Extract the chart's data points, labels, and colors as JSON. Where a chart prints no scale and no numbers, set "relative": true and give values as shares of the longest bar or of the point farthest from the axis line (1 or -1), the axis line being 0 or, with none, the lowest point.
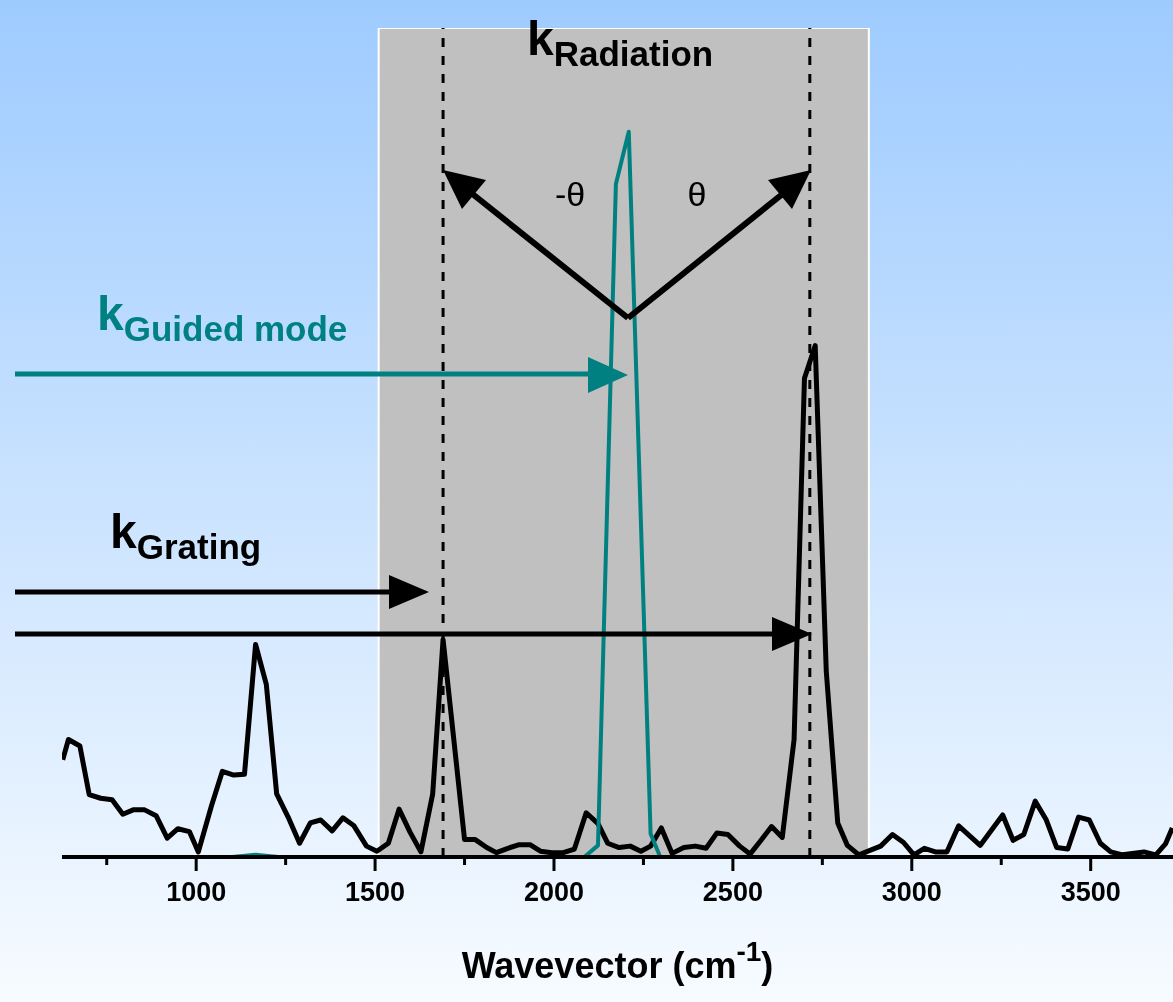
{
  "chart_data": {
    "type": "line",
    "relative": true,
    "xlabel": "Wavevector (cm$^{-1}$)",
    "xlim": [
      625,
      3730
    ],
    "xticks": [
      {
        "value": 750,
        "label": null
      },
      1000,
      {
        "value": 1250,
        "label": null
      },
      1500,
      {
        "value": 1750,
        "label": null
      },
      2000,
      {
        "value": 2250,
        "label": null
      },
      2500,
      {
        "value": 2750,
        "label": null
      },
      3000,
      {
        "value": 3250,
        "label": null
      },
      3500
    ],
    "marker": "none",
    "line_style": "solid",
    "series": [
      {
        "color": "#000000",
        "x": [
          627,
          643,
          675,
          701,
          733,
          765,
          795,
          824,
          856,
          888,
          919,
          949,
          981,
          1006,
          1043,
          1073,
          1105,
          1135,
          1166,
          1196,
          1225,
          1257,
          1289,
          1319,
          1348,
          1380,
          1410,
          1441,
          1476,
          1505,
          1537,
          1567,
          1598,
          1628,
          1661,
          1690,
          1750,
          1780,
          1812,
          1839,
          1871,
          1903,
          1933,
          1962,
          1994,
          2026,
          2057,
          2090,
          2123,
          2150,
          2182,
          2213,
          2243,
          2270,
          2300,
          2330,
          2363,
          2395,
          2425,
          2455,
          2486,
          2519,
          2548,
          2577,
          2608,
          2638,
          2671,
          2700,
          2730,
          2761,
          2793,
          2820,
          2852,
          2913,
          2946,
          2977,
          3006,
          3035,
          3066,
          3098,
          3131,
          3191,
          3254,
          3283,
          3313,
          3345,
          3376,
          3405,
          3436,
          3466,
          3496,
          3527,
          3556,
          3589,
          3649,
          3682,
          3709,
          3728
        ],
        "values": [
          0.134,
          0.162,
          0.153,
          0.086,
          0.081,
          0.079,
          0.059,
          0.065,
          0.065,
          0.057,
          0.026,
          0.039,
          0.035,
          0.007,
          0.071,
          0.118,
          0.113,
          0.114,
          0.293,
          0.238,
          0.087,
          0.055,
          0.019,
          0.047,
          0.051,
          0.036,
          0.054,
          0.043,
          0.015,
          0.008,
          0.019,
          0.066,
          0.034,
          0.007,
          0.087,
          0.3,
          0.024,
          0.024,
          0.013,
          0.006,
          0.012,
          0.017,
          0.017,
          0.008,
          0.006,
          0.006,
          0.011,
          0.061,
          0.046,
          0.019,
          0.013,
          0.015,
          0.008,
          0.015,
          0.04,
          0.005,
          0.013,
          0.015,
          0.012,
          0.033,
          0.031,
          0.015,
          0.004,
          0.022,
          0.042,
          0.027,
          0.162,
          0.66,
          0.705,
          0.256,
          0.047,
          0.016,
          0.003,
          0.015,
          0.031,
          0.02,
          0.003,
          0.012,
          0.007,
          0.007,
          0.043,
          0.016,
          0.058,
          0.023,
          0.031,
          0.077,
          0.051,
          0.013,
          0.011,
          0.055,
          0.051,
          0.019,
          0.007,
          0.003,
          0.007,
          0.003,
          0.018,
          0.04
        ]
      },
      {
        "color": "#008080",
        "x": [
          625,
          1100,
          1166,
          1230,
          2085,
          2123,
          2173,
          2209,
          2270,
          2297,
          3730
        ],
        "values": [
          0,
          0,
          0.003,
          0,
          0,
          0.016,
          0.928,
          1,
          0.032,
          0,
          0
        ]
      }
    ],
    "bands": [
      {
        "axis": "x",
        "from": 1510,
        "to": 2880,
        "color": "#c0c0c0"
      }
    ],
    "ref_lines": [
      {
        "axis": "x",
        "value": 1690,
        "color": "#000000",
        "line_style": "dashed"
      },
      {
        "axis": "x",
        "value": 2715,
        "color": "#000000",
        "line_style": "dashed"
      }
    ],
    "annotations": [
      "k$_{Radiation}$",
      "-θ",
      "θ",
      "k$_{Guided mode}$",
      "k$_{Grating}$"
    ]
  }
}
